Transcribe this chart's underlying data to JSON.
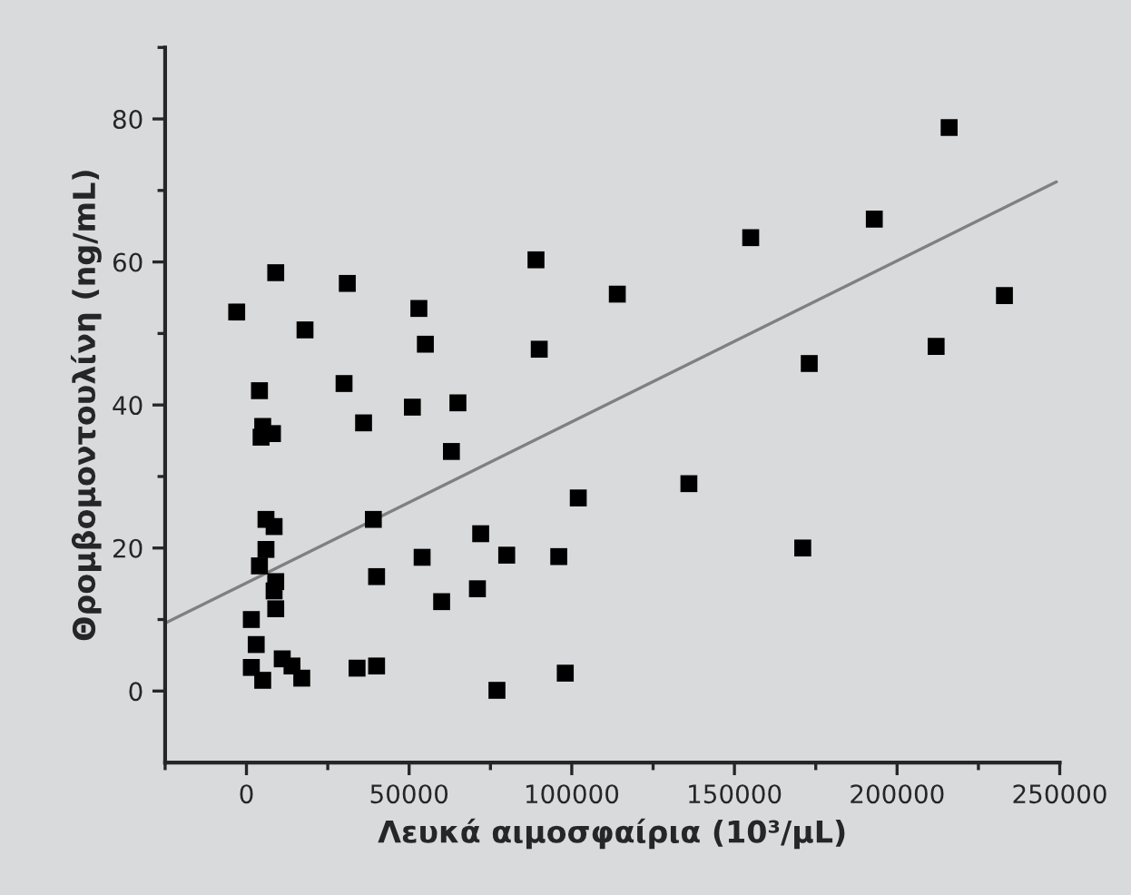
{
  "chart_data": {
    "type": "scatter",
    "xlabel": "Λευκά αιμοσφαίρια (10³/μL)",
    "ylabel": "Θρομβομοντουλίνη (ng/mL)",
    "xlim": [
      -25000,
      250000
    ],
    "ylim": [
      -10,
      90
    ],
    "xticks": [
      {
        "value": -25000,
        "label": null
      },
      0,
      {
        "value": 25000,
        "label": null
      },
      50000,
      {
        "value": 75000,
        "label": null
      },
      100000,
      {
        "value": 125000,
        "label": null
      },
      150000,
      {
        "value": 175000,
        "label": null
      },
      200000,
      {
        "value": 225000,
        "label": null
      },
      250000
    ],
    "yticks": [
      0,
      {
        "value": 10,
        "label": null
      },
      20,
      {
        "value": 30,
        "label": null
      },
      40,
      {
        "value": 50,
        "label": null
      },
      60,
      {
        "value": 70,
        "label": null
      },
      80,
      {
        "value": 90,
        "label": null
      }
    ],
    "grid": false,
    "legend": false,
    "series": [
      {
        "marker": "square",
        "color": "#000000",
        "x": [
          -3000,
          9000,
          31000,
          18000,
          53000,
          55000,
          4000,
          30000,
          51000,
          65000,
          5000,
          4500,
          8000,
          36000,
          63000,
          6000,
          8500,
          39000,
          6000,
          4000,
          9000,
          8500,
          9000,
          40000,
          54000,
          60000,
          72000,
          71000,
          80000,
          1500,
          3000,
          1500,
          5000,
          11000,
          14000,
          17000,
          34000,
          40000,
          77000,
          89000,
          90000,
          114000,
          155000,
          193000,
          216000,
          233000,
          212000,
          173000,
          136000,
          102000,
          96000,
          98000,
          171000
        ],
        "values": [
          53,
          58.5,
          57,
          50.5,
          53.5,
          48.5,
          42,
          43,
          39.7,
          40.3,
          37,
          35.5,
          36,
          37.5,
          33.5,
          24,
          23,
          24,
          19.8,
          17.5,
          15.3,
          14,
          11.5,
          16,
          18.7,
          12.5,
          22,
          14.3,
          19,
          10,
          6.5,
          3.3,
          1.5,
          4.5,
          3.5,
          1.8,
          3.2,
          3.5,
          0.1,
          60.3,
          47.8,
          55.5,
          63.4,
          66,
          78.8,
          55.3,
          48.2,
          45.8,
          29,
          27,
          18.8,
          2.5,
          20
        ]
      },
      {
        "type": "line",
        "marker": "none",
        "line_style": "solid",
        "color": "#808080",
        "x": [
          -25000,
          249000
        ],
        "values": [
          9.5,
          71.2
        ]
      }
    ]
  }
}
